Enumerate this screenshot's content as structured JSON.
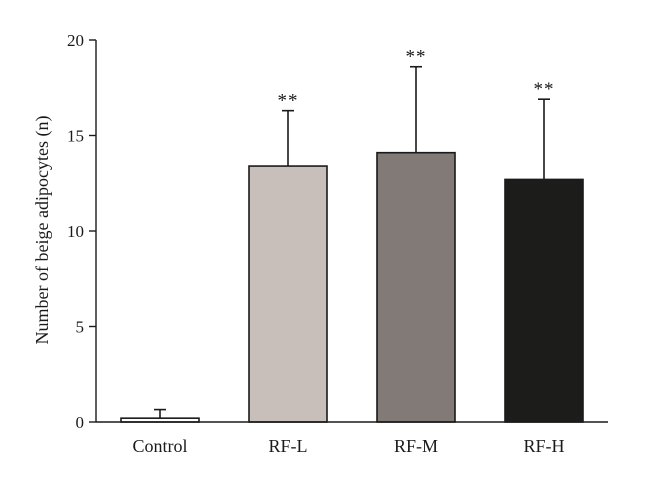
{
  "chart_data": {
    "type": "bar",
    "title": "",
    "xlabel": "",
    "ylabel": "Number of beige adipocytes (n)",
    "ylim": [
      0,
      20
    ],
    "yticks": [
      0,
      5,
      10,
      15,
      20
    ],
    "grid": false,
    "categories": [
      "Control",
      "RF-L",
      "RF-M",
      "RF-H"
    ],
    "values": [
      0.2,
      13.4,
      14.1,
      12.7
    ],
    "errors": [
      0.45,
      2.9,
      4.5,
      4.2
    ],
    "significance": [
      "",
      "**",
      "**",
      "**"
    ],
    "colors": [
      "#ffffff",
      "#c8bfba",
      "#827a77",
      "#1c1c1a"
    ]
  }
}
